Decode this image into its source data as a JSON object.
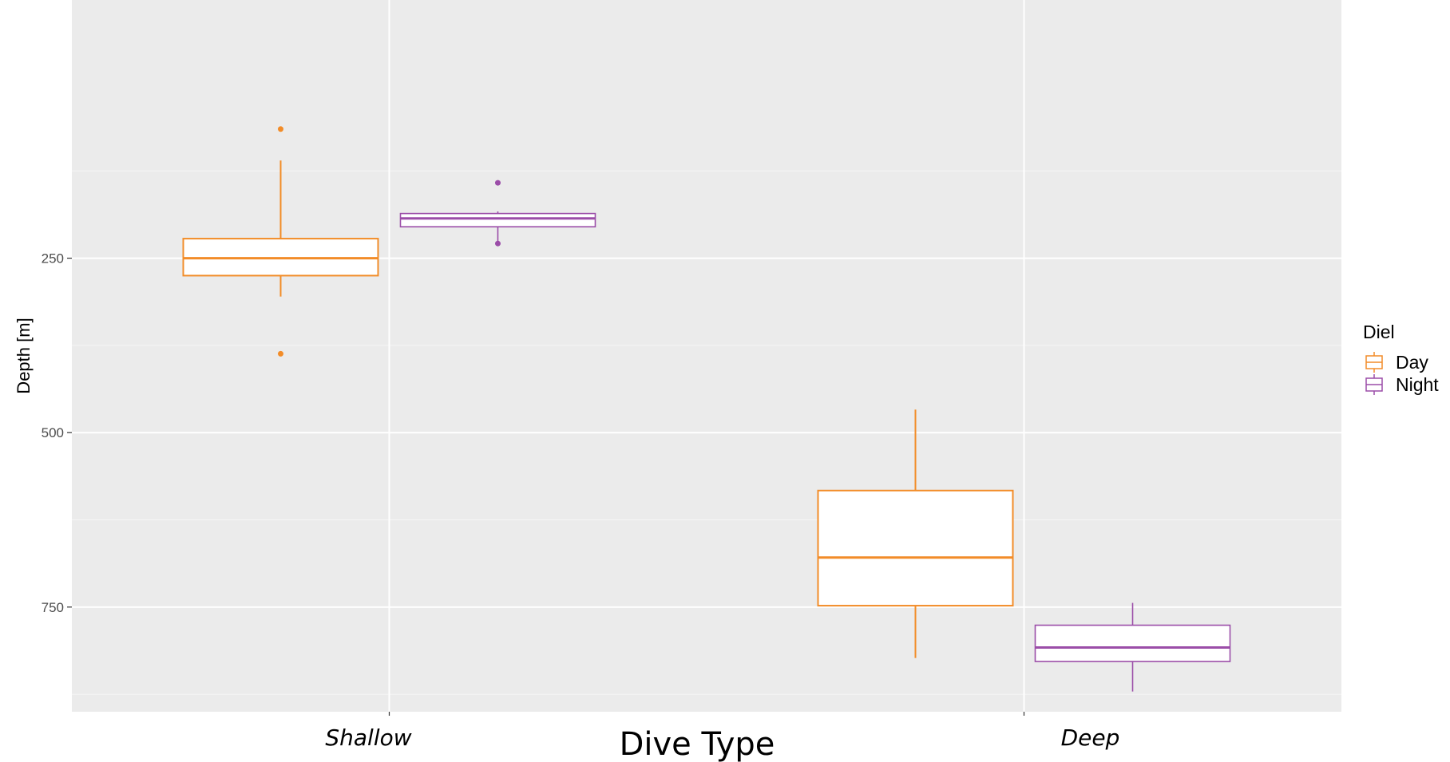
{
  "chart_data": {
    "type": "box",
    "xlabel": "Dive Type",
    "ylabel": "Depth [m]",
    "y_reversed": true,
    "ylim": [
      -120,
      900
    ],
    "yticks": [
      250,
      500,
      750
    ],
    "grid": true,
    "legend": {
      "title": "Diel",
      "position": "right"
    },
    "categories": [
      "Shallow",
      "Deep"
    ],
    "series": [
      {
        "name": "Day",
        "color": "#F28C28",
        "boxes": [
          {
            "category": "Shallow",
            "whisker_low": 110,
            "q1": 222,
            "median": 250,
            "q3": 275,
            "whisker_high": 305,
            "outliers": [
              65,
              387
            ]
          },
          {
            "category": "Deep",
            "whisker_low": 467,
            "q1": 583,
            "median": 679,
            "q3": 748,
            "whisker_high": 823,
            "outliers": []
          }
        ]
      },
      {
        "name": "Night",
        "color": "#9B4DA8",
        "boxes": [
          {
            "category": "Shallow",
            "whisker_low": 183,
            "q1": 186,
            "median": 193,
            "q3": 205,
            "whisker_high": 229,
            "outliers": [
              142,
              229
            ]
          },
          {
            "category": "Deep",
            "whisker_low": 744,
            "q1": 776,
            "median": 808,
            "q3": 828,
            "whisker_high": 871,
            "outliers": []
          }
        ]
      }
    ]
  }
}
